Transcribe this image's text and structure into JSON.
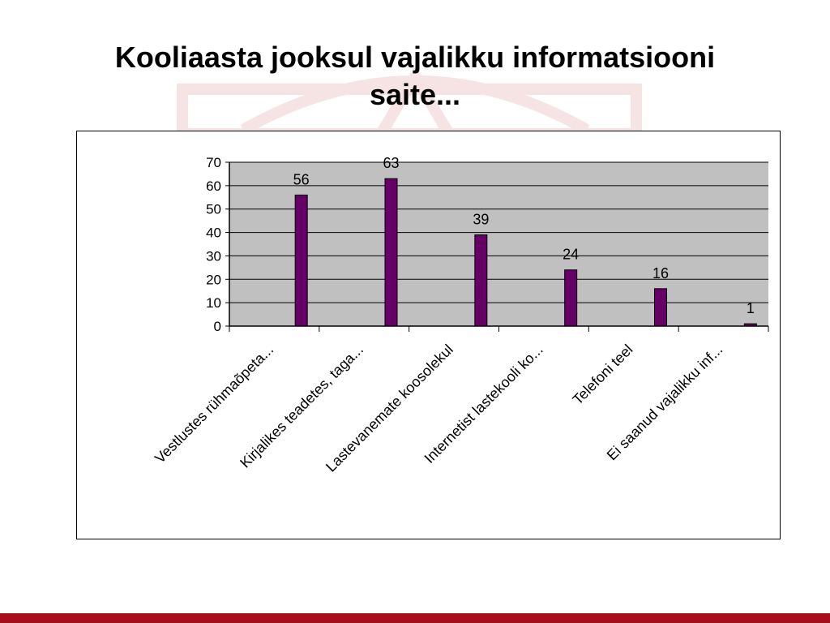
{
  "slide": {
    "title_line1": "Kooliaasta jooksul vajalikku informatsiooni",
    "title_line2": "saite...",
    "accent_color": "#a80d1c"
  },
  "chart_data": {
    "type": "bar",
    "categories": [
      "Vestlustes rühmaõpeta...",
      "Kirjalikes teadetes, taga...",
      "Lastevanemate koosolekul",
      "Internetist lastekooli ko...",
      "Telefoni teel",
      "Ei saanud vajalikku inf..."
    ],
    "values": [
      56,
      63,
      39,
      24,
      16,
      1
    ],
    "ylim": [
      0,
      70
    ],
    "yticks": [
      0,
      10,
      20,
      30,
      40,
      50,
      60,
      70
    ],
    "grid": true,
    "data_labels": true,
    "bar_color": "#660066",
    "plot_background": "#c0c0c0"
  }
}
